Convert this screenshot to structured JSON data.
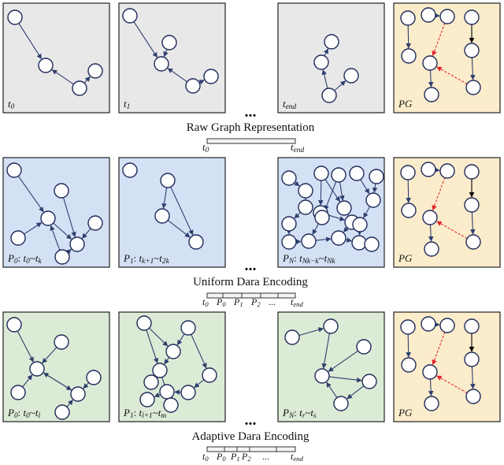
{
  "colors": {
    "raw_fill": "#e8e8e8",
    "uniform_fill": "#d4e0f4",
    "adaptive_fill": "#dcebd5",
    "pg_fill": "#fbeccb",
    "node_stroke": "#1f2a5a",
    "edge": "#2d3f6e",
    "pg_dashed": "#e0242b",
    "pg_solid": "#000000"
  },
  "ellipsis": "...",
  "rows": [
    {
      "id": "raw",
      "caption": "Raw Graph Representation",
      "panels": [
        {
          "label": [
            [
              "t",
              "i"
            ],
            [
              "0",
              "sub"
            ]
          ]
        },
        {
          "label": [
            [
              "t",
              "i"
            ],
            [
              "1",
              "sub"
            ]
          ]
        },
        {
          "label": [
            [
              "t",
              "i"
            ],
            [
              "end",
              "sub"
            ]
          ]
        },
        {
          "label": [
            [
              "PG",
              "i"
            ]
          ]
        }
      ],
      "timeline": {
        "segment_labels": [],
        "start_label": [
          [
            "t",
            "i"
          ],
          [
            "0",
            "sub"
          ]
        ],
        "end_label": [
          [
            "t",
            "i"
          ],
          [
            "end",
            "sub"
          ]
        ]
      }
    },
    {
      "id": "uniform",
      "caption": "Uniform Dara Encoding",
      "panels": [
        {
          "label": [
            [
              "P",
              "i"
            ],
            [
              "0",
              "sub"
            ],
            [
              ": ",
              ""
            ],
            [
              "t",
              "i"
            ],
            [
              "0",
              "sub"
            ],
            [
              "~",
              ""
            ],
            [
              "t",
              "i"
            ],
            [
              "k",
              "sub"
            ]
          ]
        },
        {
          "label": [
            [
              "P",
              "i"
            ],
            [
              "1",
              "sub"
            ],
            [
              ": ",
              ""
            ],
            [
              "t",
              "i"
            ],
            [
              "k+1",
              "sub"
            ],
            [
              "~",
              ""
            ],
            [
              "t",
              "i"
            ],
            [
              "2k",
              "sub"
            ]
          ]
        },
        {
          "label": [
            [
              "P",
              "i"
            ],
            [
              "N",
              "sub"
            ],
            [
              ": ",
              ""
            ],
            [
              "t",
              "i"
            ],
            [
              "Nk−k",
              "sub"
            ],
            [
              "~",
              ""
            ],
            [
              "t",
              "i"
            ],
            [
              "Nk",
              "sub"
            ]
          ]
        },
        {
          "label": [
            [
              "PG",
              "i"
            ]
          ]
        }
      ],
      "timeline": {
        "segment_labels": [
          [
            [
              "P",
              "i"
            ],
            [
              "0",
              "sub"
            ]
          ],
          [
            [
              "P",
              "i"
            ],
            [
              "1",
              "sub"
            ]
          ],
          [
            [
              "P",
              "i"
            ],
            [
              "2",
              "sub"
            ]
          ],
          [
            [
              "...",
              ""
            ]
          ]
        ],
        "start_label": [
          [
            "t",
            "i"
          ],
          [
            "0",
            "sub"
          ]
        ],
        "end_label": [
          [
            "t",
            "i"
          ],
          [
            "end",
            "sub"
          ]
        ]
      }
    },
    {
      "id": "adaptive",
      "caption": "Adaptive Dara Encoding",
      "panels": [
        {
          "label": [
            [
              "P",
              "i"
            ],
            [
              "0",
              "sub"
            ],
            [
              ": ",
              ""
            ],
            [
              "t",
              "i"
            ],
            [
              "0",
              "sub"
            ],
            [
              "~",
              ""
            ],
            [
              "t",
              "i"
            ],
            [
              "l",
              "sub"
            ]
          ]
        },
        {
          "label": [
            [
              "P",
              "i"
            ],
            [
              "1",
              "sub"
            ],
            [
              ": ",
              ""
            ],
            [
              "t",
              "i"
            ],
            [
              "l+1",
              "sub"
            ],
            [
              "~",
              ""
            ],
            [
              "t",
              "i"
            ],
            [
              "m",
              "sub"
            ]
          ]
        },
        {
          "label": [
            [
              "P",
              "i"
            ],
            [
              "N",
              "sub"
            ],
            [
              ": ",
              ""
            ],
            [
              "t",
              "i"
            ],
            [
              "r",
              "sub"
            ],
            [
              "~",
              ""
            ],
            [
              "t",
              "i"
            ],
            [
              "s",
              "sub"
            ]
          ]
        },
        {
          "label": [
            [
              "PG",
              "i"
            ]
          ]
        }
      ],
      "timeline": {
        "segment_labels": [
          [
            [
              "P",
              "i"
            ],
            [
              "0",
              "sub"
            ]
          ],
          [
            [
              "P",
              "i"
            ],
            [
              "1",
              "sub"
            ]
          ],
          [
            [
              "P",
              "i"
            ],
            [
              "2",
              "sub"
            ]
          ],
          [
            [
              "...",
              ""
            ]
          ]
        ],
        "start_label": [
          [
            "t",
            "i"
          ],
          [
            "0",
            "sub"
          ]
        ],
        "end_label": [
          [
            "t",
            "i"
          ],
          [
            "end",
            "sub"
          ]
        ]
      }
    }
  ]
}
